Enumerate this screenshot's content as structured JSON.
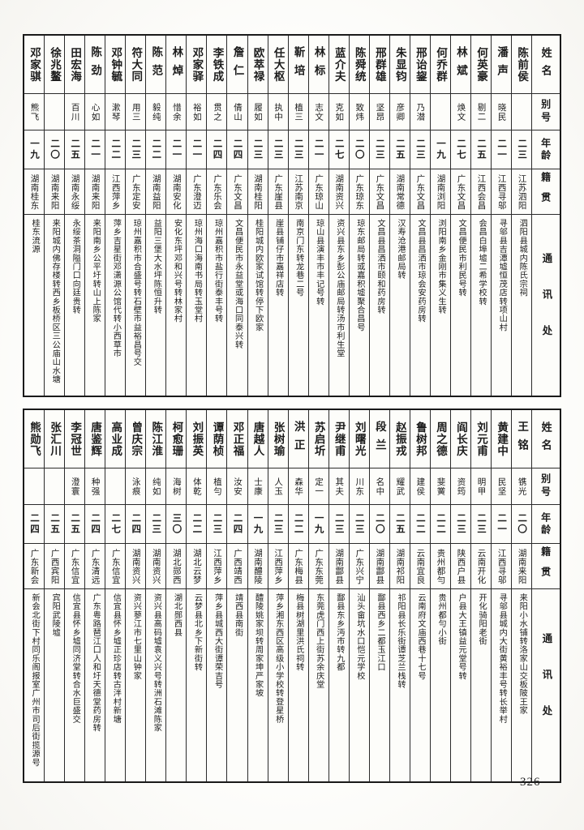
{
  "page": {
    "number": "326"
  },
  "headers": {
    "name": "姓名",
    "alias": "别号",
    "age": "年龄",
    "native": "籍贯",
    "contact": "通讯处"
  },
  "tables": [
    {
      "persons": [
        {
          "name": "邓家骐",
          "alias": "熊飞",
          "age": "一九",
          "native": "湖南桂东",
          "contact": "桂东流源"
        },
        {
          "name": "徐兆鳌",
          "alias": "",
          "age": "二〇",
          "native": "湖南来阳",
          "contact": "来阳城内佛存楼转西乡板桥区三公庙山水塘"
        },
        {
          "name": "田宏海",
          "alias": "百川",
          "age": "二五",
          "native": "湖南永绥",
          "contact": "永绥茶洞隘门口向廷贵转"
        },
        {
          "name": "陈劲",
          "alias": "心如",
          "age": "二一",
          "native": "湖南来阳",
          "contact": "来阳南乡公平圩转山上陈家"
        },
        {
          "name": "邓钟毓",
          "alias": "漱琴",
          "age": "二二",
          "native": "江西萍乡",
          "contact": "萍乡吉星街邓潇源公馆代转小西草市"
        },
        {
          "name": "符大同",
          "alias": "用三",
          "age": "二三",
          "native": "广东定安",
          "contact": "琼州嘉积市合盛号转石壁市益裕昌号交"
        },
        {
          "name": "陈范",
          "alias": "毅纯",
          "age": "二二",
          "native": "湖南益阳",
          "contact": "益阳三堡大水坪陈恒升转"
        },
        {
          "name": "林焯",
          "alias": "惜余",
          "age": "二一",
          "native": "湖南安化",
          "contact": "安化东坪邓和兴号转林家村"
        },
        {
          "name": "邓家驿",
          "alias": "裕如",
          "age": "二一",
          "native": "广东澄迈",
          "contact": "琼州海口海南书局转玉堂村"
        },
        {
          "name": "李铁成",
          "alias": "贯之",
          "age": "二四",
          "native": "广东乐会",
          "contact": "琼州嘉积市盐行街泰丰号转"
        },
        {
          "name": "詹仁",
          "alias": "倩山",
          "age": "二四",
          "native": "广东文昌",
          "contact": "文昌便民市永益堂或海口同泰兴转"
        },
        {
          "name": "欧萃禄",
          "alias": "履如",
          "age": "二三",
          "native": "湖南桂阳",
          "contact": "桂阳城内欧家试馆转停下欧家"
        },
        {
          "name": "任大枢",
          "alias": "执中",
          "age": "二三",
          "native": "广东崖县",
          "contact": "崖县铺仔市嘉祥店转"
        },
        {
          "name": "靳培",
          "alias": "植三",
          "age": "二三",
          "native": "江苏南京",
          "contact": "南京门东转龙巷二号"
        },
        {
          "name": "林标",
          "alias": "志文",
          "age": "二一",
          "native": "广东琼山",
          "contact": "琼山县演丰市丰记号转"
        },
        {
          "name": "蓝介夫",
          "alias": "克如",
          "age": "二七",
          "native": "湖南资兴",
          "contact": "资兴县东乡彭公庙邮局转汤市利生堂"
        },
        {
          "name": "陈舜统",
          "alias": "致炜",
          "age": "二〇",
          "native": "广东琼东",
          "contact": "琼东邮局转或嘉积墟聚合昌号"
        },
        {
          "name": "邢群雄",
          "alias": "坚昂",
          "age": "二三",
          "native": "广东文昌",
          "contact": "文昌县昌洒市颐和药房转"
        },
        {
          "name": "朱显钧",
          "alias": "彦卿",
          "age": "二五",
          "native": "湖南常德",
          "contact": "汉寿沧港邮局转"
        },
        {
          "name": "邢诒鋆",
          "alias": "乃潜",
          "age": "二三",
          "native": "广东文昌",
          "contact": "文昌县昌洒市琼会安药房转"
        },
        {
          "name": "何乔群",
          "alias": "",
          "age": "一九",
          "native": "湖南浏阳",
          "contact": "浏阳南乡金刚市集义生转"
        },
        {
          "name": "林斌",
          "alias": "焕文",
          "age": "二七",
          "native": "广东文昌",
          "contact": "文昌便民市利民号转"
        },
        {
          "name": "何英豪",
          "alias": "剔二",
          "age": "二五",
          "native": "江西会昌",
          "contact": "会昌白埠墟二希学校转"
        },
        {
          "name": "潘声",
          "alias": "晓民",
          "age": "二一",
          "native": "江西寻邬",
          "contact": "寻邬县吉潭墟恒茂店转项山村"
        },
        {
          "name": "陈前侯",
          "alias": "",
          "age": "二三",
          "native": "江苏泗阳",
          "contact": "泗阳县城内陈氏宗祠"
        }
      ]
    },
    {
      "persons": [
        {
          "name": "熊勋飞",
          "alias": "",
          "age": "二四",
          "native": "广东新会",
          "contact": "新会北街下村同乐阁报室广州市司后街揽源号"
        },
        {
          "name": "张汇川",
          "alias": "",
          "age": "二五",
          "native": "广西宾阳",
          "contact": "宾阳武陵墟"
        },
        {
          "name": "李冠世",
          "alias": "澄寰",
          "age": "二五",
          "native": "广东信宜",
          "contact": "信宜县怀乡墟同济堂转合水巨盛交"
        },
        {
          "name": "唐鉴辉",
          "alias": "种强",
          "age": "二四",
          "native": "广东清远",
          "contact": "广东粤路琶江口人和圩天德堂药房转"
        },
        {
          "name": "高业成",
          "alias": "",
          "age": "二七",
          "native": "广东信宜",
          "contact": "信宜县怀乡墟正珍店转古泮村新塘"
        },
        {
          "name": "曾庆宗",
          "alias": "泳痕",
          "age": "二四",
          "native": "湖南资兴",
          "contact": "资兴蓼江市七里山钟家"
        },
        {
          "name": "陈江淮",
          "alias": "纯如",
          "age": "二三",
          "native": "湖南资兴",
          "contact": "资兴县高码墟袁义兴号转洲石滩陈家"
        },
        {
          "name": "柯愈珊",
          "alias": "海树",
          "age": "三〇",
          "native": "湖北郧西",
          "contact": "湖北郧西县"
        },
        {
          "name": "刘振英",
          "alias": "体乾",
          "age": "二二",
          "native": "湖北云梦",
          "contact": "云梦县北乡下新街转"
        },
        {
          "name": "谭荫桢",
          "alias": "植勻",
          "age": "二三",
          "native": "江西萍乡",
          "contact": "萍乡县城西大街谭荣吉号"
        },
        {
          "name": "邓正福",
          "alias": "汝安",
          "age": "二四",
          "native": "广西靖西",
          "contact": "靖西县南街"
        },
        {
          "name": "唐越人",
          "alias": "士康",
          "age": "一九",
          "native": "湖南醴陵",
          "contact": "醴陵姚家坝转周家坤严家坡"
        },
        {
          "name": "张树瑜",
          "alias": "人玉",
          "age": "二三",
          "native": "江西萍乡",
          "contact": "萍乡湘东西区高级小学校转登星桥"
        },
        {
          "name": "洪正",
          "alias": "森华",
          "age": "二二",
          "native": "广东梅县",
          "contact": "梅县树湖里洪氏祠转"
        },
        {
          "name": "苏启圻",
          "alias": "定一",
          "age": "一九",
          "native": "广东东莞",
          "contact": "东莞虎门西上街苏余庆堂"
        },
        {
          "name": "尹继甫",
          "alias": "其夫",
          "age": "二三",
          "native": "湖南酃县",
          "contact": "酃县东乡沔市转九都"
        },
        {
          "name": "刘曙光",
          "alias": "川东",
          "age": "二三",
          "native": "广东兴宁",
          "contact": "汕头畲坑水口恺元学校"
        },
        {
          "name": "段兰",
          "alias": "名中",
          "age": "二〇",
          "native": "湖南酃县",
          "contact": "酃县西乡二都玉江口"
        },
        {
          "name": "赵振戎",
          "alias": "耀武",
          "age": "二五",
          "native": "湖南祁阳",
          "contact": "祁阳县长乐街谭芝兰栈转"
        },
        {
          "name": "鲁树邦",
          "alias": "建侯",
          "age": "二二",
          "native": "云南宜良",
          "contact": "云南府文庙西巷十七号"
        },
        {
          "name": "周之德",
          "alias": "斐黉",
          "age": "二二",
          "native": "贵州都勻",
          "contact": "贵州都勻小街"
        },
        {
          "name": "阎长庆",
          "alias": "资筠",
          "age": "二三",
          "native": "陕西户县",
          "contact": "户县大王镇益元堂号转"
        },
        {
          "name": "刘元甫",
          "alias": "明甲",
          "age": "二三",
          "native": "云南开化",
          "contact": "开化骑阳老街"
        },
        {
          "name": "黄建中",
          "alias": "民坚",
          "age": "二一",
          "native": "江西寻邬",
          "contact": "寻邬县城内大街黄裕丰号转长举村"
        },
        {
          "name": "王铭",
          "alias": "镌光",
          "age": "二〇",
          "native": "湖南来阳",
          "contact": "来阳小水铺转洛家山交板陂王家"
        }
      ]
    }
  ]
}
